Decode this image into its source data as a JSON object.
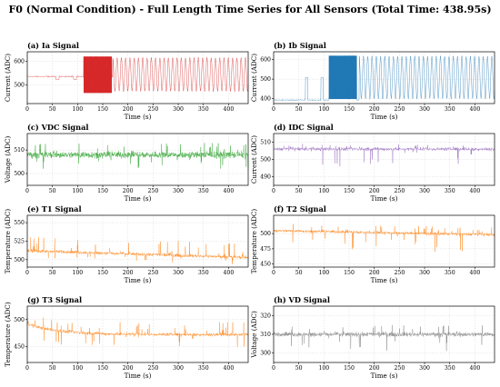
{
  "figure_title": "F0 (Normal Condition) - Full Length Time Series for All Sensors (Total Time: 438.95s)",
  "chart_data": [
    {
      "type": "line",
      "title": "(a) Ia Signal",
      "xlabel": "Time (s)",
      "ylabel": "Current (ADC)",
      "xlim": [
        0,
        439
      ],
      "ylim": [
        420,
        640
      ],
      "xticks": [
        0,
        50,
        100,
        150,
        200,
        250,
        300,
        350,
        400
      ],
      "yticks": [
        500,
        600
      ],
      "color": "#d62728",
      "series": [
        {
          "kind": "switching",
          "baseline": 535,
          "dips": [
            [
              60,
              522
            ],
            [
              95,
              522
            ]
          ],
          "dense": [
            112,
            168
          ],
          "dense_range": [
            465,
            620
          ],
          "osc_start": 170,
          "osc_period": 8.5,
          "osc_range": [
            472,
            615
          ],
          "noise": 2
        }
      ],
      "grid": true
    },
    {
      "type": "line",
      "title": "(b) Ib Signal",
      "xlabel": "Time (s)",
      "ylabel": "Current (ADC)",
      "xlim": [
        0,
        439
      ],
      "ylim": [
        375,
        640
      ],
      "xticks": [
        0,
        50,
        100,
        150,
        200,
        250,
        300,
        350,
        400
      ],
      "yticks": [
        400,
        500,
        600
      ],
      "color": "#1f77b4",
      "series": [
        {
          "kind": "switching",
          "baseline": 393,
          "pulses": [
            [
              63,
              68,
              508
            ],
            [
              94,
              99,
              508
            ]
          ],
          "dense": [
            110,
            165
          ],
          "dense_range": [
            398,
            620
          ],
          "osc_start": 170,
          "osc_period": 8.5,
          "osc_range": [
            400,
            618
          ],
          "noise": 2
        }
      ],
      "grid": true
    },
    {
      "type": "line",
      "title": "(c) VDC Signal",
      "xlabel": "Time (s)",
      "ylabel": "Voltage (ADC)",
      "xlim": [
        0,
        439
      ],
      "ylim": [
        495,
        517
      ],
      "xticks": [
        0,
        50,
        100,
        150,
        200,
        250,
        300,
        350,
        400
      ],
      "yticks": [
        500,
        510
      ],
      "color": "#2ca02c",
      "series": [
        {
          "kind": "noisy",
          "start": 508,
          "end": 508,
          "noise": 1.2,
          "spike_up": 5,
          "spike_down": 6
        }
      ],
      "grid": true
    },
    {
      "type": "line",
      "title": "(d) IDC Signal",
      "xlabel": "Time (s)",
      "ylabel": "Current (ADC)",
      "xlim": [
        0,
        439
      ],
      "ylim": [
        485,
        515
      ],
      "xticks": [
        0,
        50,
        100,
        150,
        200,
        250,
        300,
        350,
        400
      ],
      "yticks": [
        490,
        500,
        510
      ],
      "color": "#9467bd",
      "series": [
        {
          "kind": "noisy",
          "start": 506,
          "end": 506,
          "noise": 0.8,
          "spike_up": 3,
          "spike_down": 10
        }
      ],
      "grid": true
    },
    {
      "type": "line",
      "title": "(e) T1 Signal",
      "xlabel": "Time (s)",
      "ylabel": "Temperature (ADC)",
      "xlim": [
        0,
        439
      ],
      "ylim": [
        490,
        560
      ],
      "xticks": [
        0,
        50,
        100,
        150,
        200,
        250,
        300,
        350,
        400
      ],
      "yticks": [
        500,
        525,
        550
      ],
      "color": "#ff7f0e",
      "series": [
        {
          "kind": "noisy",
          "start": 512,
          "end": 503,
          "noise": 1.8,
          "spike_up": 20,
          "spike_down": 10
        }
      ],
      "grid": true
    },
    {
      "type": "line",
      "title": "(f) T2 Signal",
      "xlabel": "Time (s)",
      "ylabel": "Temperature (ADC)",
      "xlim": [
        0,
        439
      ],
      "ylim": [
        445,
        530
      ],
      "xticks": [
        0,
        50,
        100,
        150,
        200,
        250,
        300,
        350,
        400
      ],
      "yticks": [
        450,
        475,
        500
      ],
      "color": "#ff7f0e",
      "series": [
        {
          "kind": "noisy",
          "start": 505,
          "end": 498,
          "noise": 2,
          "spike_up": 12,
          "spike_down": 30
        }
      ],
      "grid": true
    },
    {
      "type": "line",
      "title": "(g) T3 Signal",
      "xlabel": "Time (s)",
      "ylabel": "Temperature (ADC)",
      "xlim": [
        0,
        439
      ],
      "ylim": [
        420,
        525
      ],
      "xticks": [
        0,
        50,
        100,
        150,
        200,
        250,
        300,
        350,
        400
      ],
      "yticks": [
        450,
        500
      ],
      "color": "#ff7f0e",
      "series": [
        {
          "kind": "decay",
          "start": 492,
          "end": 472,
          "tau": 60,
          "noise": 2.5,
          "spike_up": 25,
          "spike_down": 25
        }
      ],
      "grid": true
    },
    {
      "type": "line",
      "title": "(h) VD Signal",
      "xlabel": "Time (s)",
      "ylabel": "Voltage (ADC)",
      "xlim": [
        0,
        439
      ],
      "ylim": [
        295,
        325
      ],
      "xticks": [
        0,
        50,
        100,
        150,
        200,
        250,
        300,
        350,
        400
      ],
      "yticks": [
        300,
        310,
        320
      ],
      "color": "#7f7f7f",
      "series": [
        {
          "kind": "noisy",
          "start": 310,
          "end": 310,
          "noise": 1,
          "spike_up": 5,
          "spike_down": 9
        }
      ],
      "grid": true
    }
  ]
}
